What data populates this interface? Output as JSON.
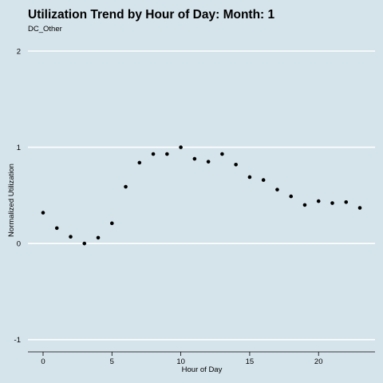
{
  "chart_data": {
    "type": "scatter",
    "title": "Utilization Trend by Hour of Day: Month: 1",
    "subtitle": "DC_Other",
    "xlabel": "Hour of Day",
    "ylabel": "Normalized Utilization",
    "xlim": [
      -1.1,
      24.1
    ],
    "ylim": [
      -1.11,
      2.0
    ],
    "x_ticks": [
      0,
      5,
      10,
      15,
      20
    ],
    "y_ticks": [
      -1,
      0,
      1,
      2
    ],
    "grid": "horizontal",
    "point_color": "#000000",
    "grid_color": "#ffffff",
    "background": "#d5e4eb",
    "series": [
      {
        "x": [
          0,
          1,
          2,
          3,
          4,
          5,
          6,
          7,
          8,
          9,
          10,
          11,
          12,
          13,
          14,
          15,
          16,
          17,
          18,
          19,
          20,
          21,
          22,
          23
        ],
        "y": [
          0.32,
          0.16,
          0.07,
          0.0,
          0.06,
          0.21,
          0.59,
          0.84,
          0.93,
          0.93,
          1.0,
          0.88,
          0.85,
          0.93,
          0.82,
          0.69,
          0.66,
          0.56,
          0.49,
          0.4,
          0.44,
          0.42,
          0.43,
          0.37
        ]
      }
    ]
  }
}
